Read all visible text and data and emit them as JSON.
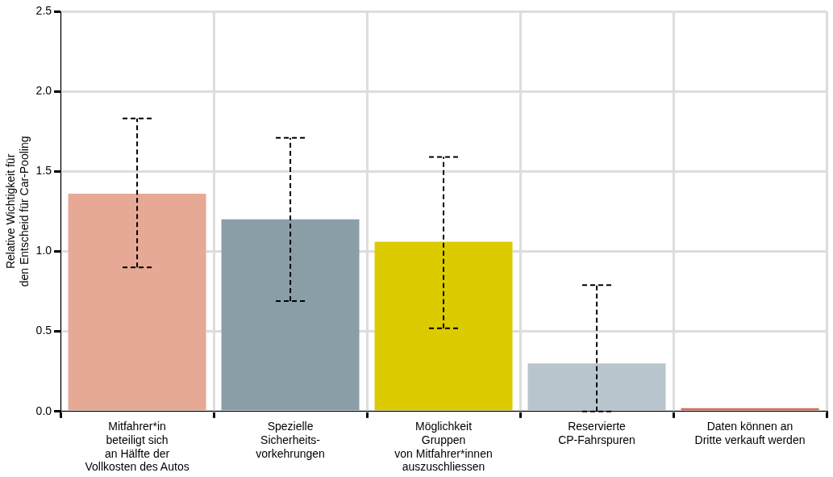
{
  "chart_data": {
    "type": "bar",
    "ylabel": "Relative Wichtigkeit für\nden Entscheid für Car-Pooling",
    "categories": [
      "Mitfahrer*in\nbeteiligt sich\nan Hälfte der\nVollkosten des Autos",
      "Spezielle\nSicherheits-\nvorkehrungen",
      "Möglichkeit\nGruppen\nvon Mitfahrer*innen\nauszuschliessen",
      "Reservierte\nCP-Fahrspuren",
      "Daten können an\nDritte verkauft werden"
    ],
    "values": [
      1.36,
      1.2,
      1.06,
      0.3,
      0.02
    ],
    "colors": [
      "#e6a996",
      "#8a9ea8",
      "#dccb00",
      "#b9c5cc",
      "#d9694a"
    ],
    "errors": [
      [
        0.9,
        1.83
      ],
      [
        0.69,
        1.71
      ],
      [
        0.52,
        1.59
      ],
      [
        0,
        0.79
      ],
      null
    ],
    "ylim": [
      0,
      2.5
    ],
    "yticks": [
      {
        "value": 0,
        "label": "0.0"
      },
      {
        "value": 0.5,
        "label": "0.5"
      },
      {
        "value": 1,
        "label": "1.0"
      },
      {
        "value": 1.5,
        "label": "1.5"
      },
      {
        "value": 2,
        "label": "2.0"
      },
      {
        "value": 2.5,
        "label": "2.5"
      }
    ],
    "grid": true,
    "legend": false,
    "line_style": "dashed"
  }
}
